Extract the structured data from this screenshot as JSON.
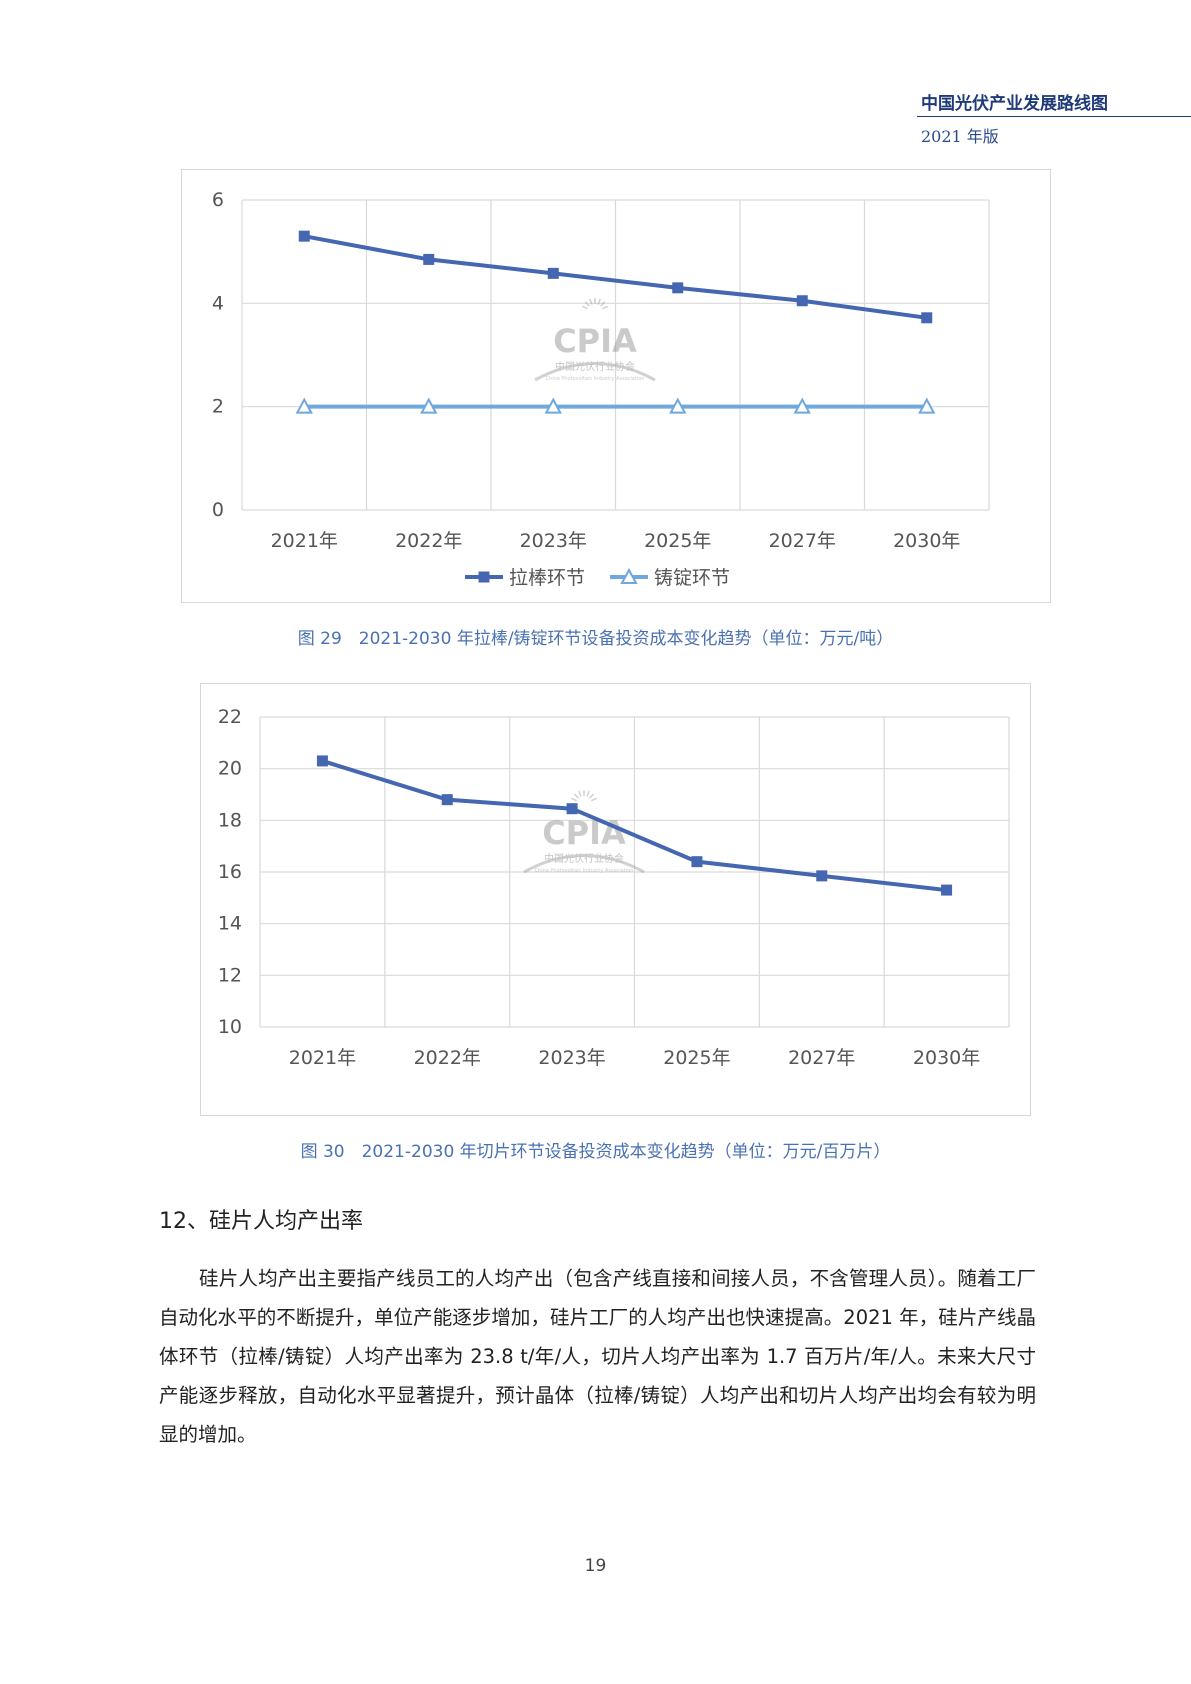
{
  "header": {
    "title": "中国光伏产业发展路线图",
    "edition": "2021 年版"
  },
  "watermark": {
    "logo_text": "CPIA",
    "org_name": "中国光伏行业协会",
    "org_name_en": "China Photovoltaic Industry Association"
  },
  "colors": {
    "series_dark": "#4566b0",
    "series_light": "#6fa8dc",
    "grid": "#d9d9d9",
    "caption": "#4a71b3"
  },
  "figure29": {
    "caption": "图 29　2021-2030 年拉棒/铸锭环节设备投资成本变化趋势（单位：万元/吨）",
    "chart_data": {
      "type": "line",
      "categories": [
        "2021年",
        "2022年",
        "2023年",
        "2025年",
        "2027年",
        "2030年"
      ],
      "ylim": [
        0,
        6
      ],
      "yticks": [
        "0",
        "2",
        "4",
        "6"
      ],
      "grid": true,
      "legend_position": "bottom",
      "series": [
        {
          "name": "拉棒环节",
          "marker": "square",
          "color": "#4566b0",
          "values": [
            5.3,
            4.85,
            4.58,
            4.3,
            4.05,
            3.72
          ]
        },
        {
          "name": "铸锭环节",
          "marker": "triangle-open",
          "color": "#6fa8dc",
          "values": [
            2.0,
            2.0,
            2.0,
            2.0,
            2.0,
            2.0
          ]
        }
      ]
    }
  },
  "figure30": {
    "caption": "图 30　2021-2030 年切片环节设备投资成本变化趋势（单位：万元/百万片）",
    "chart_data": {
      "type": "line",
      "categories": [
        "2021年",
        "2022年",
        "2023年",
        "2025年",
        "2027年",
        "2030年"
      ],
      "ylim": [
        10,
        22
      ],
      "yticks": [
        "10",
        "12",
        "14",
        "16",
        "18",
        "20",
        "22"
      ],
      "grid": true,
      "series": [
        {
          "marker": "square",
          "color": "#4566b0",
          "values": [
            20.3,
            18.8,
            18.45,
            16.4,
            15.85,
            15.3
          ]
        }
      ]
    }
  },
  "section": {
    "title": "12、硅片人均产出率"
  },
  "paragraph": "硅片人均产出主要指产线员工的人均产出（包含产线直接和间接人员，不含管理人员）。随着工厂自动化水平的不断提升，单位产能逐步增加，硅片工厂的人均产出也快速提高。2021 年，硅片产线晶体环节（拉棒/铸锭）人均产出率为 23.8 t/年/人，切片人均产出率为 1.7  百万片/年/人。未来大尺寸产能逐步释放，自动化水平显著提升，预计晶体（拉棒/铸锭）人均产出和切片人均产出均会有较为明显的增加。",
  "page_number": "19"
}
